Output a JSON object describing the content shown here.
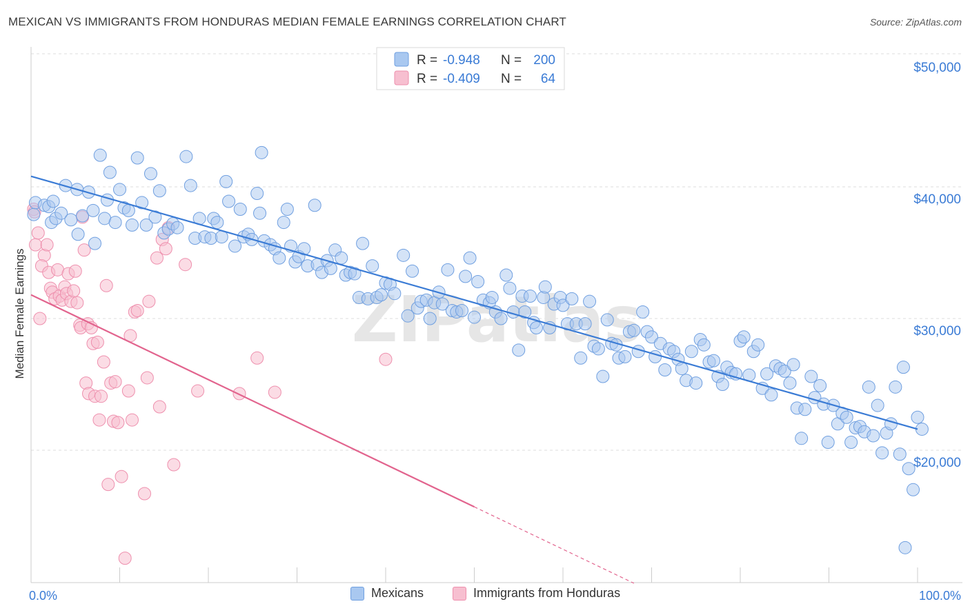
{
  "header": {
    "title": "MEXICAN VS IMMIGRANTS FROM HONDURAS MEDIAN FEMALE EARNINGS CORRELATION CHART",
    "source": "Source: ZipAtlas.com"
  },
  "watermark": "ZIPatlas",
  "colors": {
    "blue_fill": "#a9c8f0",
    "blue_stroke": "#6f9fe0",
    "blue_line": "#3a7bd5",
    "pink_fill": "#f7bfd0",
    "pink_stroke": "#ee8fad",
    "pink_line": "#e2648e",
    "axis_text_blue": "#3a7bd5",
    "grid": "#dddddd"
  },
  "legend_top": {
    "rows": [
      {
        "r_label": "R =",
        "r_value": "-0.948",
        "n_label": "N =",
        "n_value": "200"
      },
      {
        "r_label": "R =",
        "r_value": "-0.409",
        "n_label": "N =",
        "n_value": "64"
      }
    ]
  },
  "legend_bottom": {
    "items": [
      "Mexicans",
      "Immigrants from Honduras"
    ]
  },
  "chart_data": {
    "type": "scatter",
    "title": "MEXICAN VS IMMIGRANTS FROM HONDURAS MEDIAN FEMALE EARNINGS CORRELATION CHART",
    "xlabel": "",
    "ylabel": "Median Female Earnings",
    "xlim": [
      0,
      100
    ],
    "ylim": [
      10000,
      52000
    ],
    "x_tick_labels": [
      "0.0%",
      "100.0%"
    ],
    "y_ticks": [
      20000,
      30000,
      40000,
      50000
    ],
    "y_tick_labels": [
      "$20,000",
      "$30,000",
      "$40,000",
      "$50,000"
    ],
    "grid": true,
    "legend_position": "top-center",
    "series": [
      {
        "name": "Mexicans",
        "r": -0.948,
        "n": 200,
        "trend": {
          "x": [
            0,
            100
          ],
          "y": [
            40800,
            21600
          ]
        },
        "points": [
          [
            0.3,
            37.9
          ],
          [
            0.5,
            38.8
          ],
          [
            1.5,
            38.6
          ],
          [
            2.0,
            38.5
          ],
          [
            2.5,
            38.9
          ],
          [
            2.3,
            37.3
          ],
          [
            2.8,
            37.6
          ],
          [
            3.4,
            38.0
          ],
          [
            3.9,
            40.1
          ],
          [
            4.5,
            37.5
          ],
          [
            5.2,
            39.8
          ],
          [
            5.3,
            36.4
          ],
          [
            5.8,
            37.8
          ],
          [
            6.5,
            39.6
          ],
          [
            7.0,
            38.2
          ],
          [
            7.2,
            35.7
          ],
          [
            7.8,
            42.4
          ],
          [
            8.3,
            37.6
          ],
          [
            8.6,
            39.0
          ],
          [
            8.9,
            41.1
          ],
          [
            9.5,
            37.3
          ],
          [
            10.0,
            39.8
          ],
          [
            10.5,
            38.4
          ],
          [
            11.0,
            38.2
          ],
          [
            11.4,
            37.1
          ],
          [
            12.0,
            42.2
          ],
          [
            12.5,
            38.8
          ],
          [
            13.0,
            37.1
          ],
          [
            13.5,
            41.0
          ],
          [
            14.0,
            37.7
          ],
          [
            14.5,
            39.7
          ],
          [
            15.0,
            36.5
          ],
          [
            15.5,
            36.8
          ],
          [
            16.0,
            37.2
          ],
          [
            16.5,
            36.9
          ],
          [
            17.5,
            42.3
          ],
          [
            18.0,
            40.1
          ],
          [
            18.5,
            36.1
          ],
          [
            19.0,
            37.6
          ],
          [
            19.6,
            36.2
          ],
          [
            20.3,
            36.1
          ],
          [
            20.6,
            37.6
          ],
          [
            21.0,
            37.3
          ],
          [
            21.5,
            36.2
          ],
          [
            22.0,
            40.4
          ],
          [
            22.3,
            38.9
          ],
          [
            23.0,
            35.5
          ],
          [
            23.6,
            38.3
          ],
          [
            24.0,
            36.2
          ],
          [
            24.5,
            36.4
          ],
          [
            24.9,
            36.0
          ],
          [
            25.5,
            39.5
          ],
          [
            25.8,
            38.0
          ],
          [
            26.3,
            35.9
          ],
          [
            26.0,
            42.6
          ],
          [
            27.0,
            35.6
          ],
          [
            27.5,
            35.3
          ],
          [
            28.0,
            34.6
          ],
          [
            28.5,
            37.3
          ],
          [
            28.9,
            38.3
          ],
          [
            29.3,
            35.5
          ],
          [
            29.8,
            34.3
          ],
          [
            30.2,
            34.7
          ],
          [
            30.8,
            35.3
          ],
          [
            31.2,
            34.0
          ],
          [
            32.0,
            38.6
          ],
          [
            32.3,
            34.1
          ],
          [
            32.8,
            33.5
          ],
          [
            33.4,
            34.4
          ],
          [
            33.8,
            33.8
          ],
          [
            34.3,
            35.2
          ],
          [
            35.0,
            34.6
          ],
          [
            35.5,
            33.3
          ],
          [
            36.0,
            33.5
          ],
          [
            36.5,
            33.4
          ],
          [
            37.0,
            31.6
          ],
          [
            37.4,
            35.7
          ],
          [
            38.0,
            31.5
          ],
          [
            38.5,
            34.0
          ],
          [
            39.0,
            31.6
          ],
          [
            39.5,
            31.8
          ],
          [
            40.0,
            32.7
          ],
          [
            40.5,
            32.6
          ],
          [
            41.0,
            31.9
          ],
          [
            42.0,
            34.8
          ],
          [
            42.5,
            30.2
          ],
          [
            43.0,
            33.6
          ],
          [
            43.6,
            30.8
          ],
          [
            44.0,
            31.3
          ],
          [
            44.6,
            31.4
          ],
          [
            45.0,
            30.0
          ],
          [
            45.5,
            31.2
          ],
          [
            46.0,
            32.0
          ],
          [
            46.4,
            31.1
          ],
          [
            47.0,
            33.7
          ],
          [
            47.5,
            30.6
          ],
          [
            48.0,
            30.5
          ],
          [
            48.6,
            30.6
          ],
          [
            49.0,
            33.2
          ],
          [
            49.5,
            34.6
          ],
          [
            50.0,
            30.1
          ],
          [
            50.4,
            32.8
          ],
          [
            51.0,
            31.4
          ],
          [
            51.7,
            31.2
          ],
          [
            52.0,
            31.6
          ],
          [
            52.4,
            30.5
          ],
          [
            53.0,
            30.0
          ],
          [
            53.6,
            33.3
          ],
          [
            54.0,
            32.3
          ],
          [
            54.4,
            30.5
          ],
          [
            55.0,
            27.6
          ],
          [
            55.4,
            31.7
          ],
          [
            55.7,
            30.5
          ],
          [
            56.3,
            31.7
          ],
          [
            56.7,
            29.7
          ],
          [
            57.0,
            29.3
          ],
          [
            57.8,
            31.6
          ],
          [
            58.0,
            32.4
          ],
          [
            58.5,
            29.3
          ],
          [
            59.0,
            31.1
          ],
          [
            59.7,
            31.6
          ],
          [
            60.0,
            31.0
          ],
          [
            60.5,
            29.6
          ],
          [
            61.0,
            31.5
          ],
          [
            61.5,
            29.6
          ],
          [
            62.0,
            27.0
          ],
          [
            62.5,
            29.6
          ],
          [
            63.0,
            31.3
          ],
          [
            63.5,
            27.9
          ],
          [
            64.0,
            27.7
          ],
          [
            64.5,
            25.6
          ],
          [
            65.0,
            29.9
          ],
          [
            65.5,
            28.1
          ],
          [
            66.0,
            28.0
          ],
          [
            66.3,
            27.0
          ],
          [
            67.0,
            27.1
          ],
          [
            67.5,
            29.0
          ],
          [
            68.0,
            29.1
          ],
          [
            68.5,
            27.5
          ],
          [
            69.0,
            30.5
          ],
          [
            69.5,
            29.0
          ],
          [
            70.0,
            28.6
          ],
          [
            70.4,
            27.1
          ],
          [
            71.0,
            28.1
          ],
          [
            71.5,
            26.1
          ],
          [
            72.0,
            27.7
          ],
          [
            72.5,
            27.5
          ],
          [
            73.0,
            26.9
          ],
          [
            73.4,
            26.2
          ],
          [
            73.9,
            25.3
          ],
          [
            74.5,
            27.5
          ],
          [
            75.0,
            25.1
          ],
          [
            75.5,
            28.4
          ],
          [
            75.9,
            28.0
          ],
          [
            76.5,
            26.7
          ],
          [
            77.0,
            26.8
          ],
          [
            77.5,
            25.6
          ],
          [
            78.0,
            25.0
          ],
          [
            78.5,
            26.3
          ],
          [
            79.0,
            25.9
          ],
          [
            79.5,
            25.8
          ],
          [
            80.0,
            28.3
          ],
          [
            80.4,
            28.6
          ],
          [
            81.0,
            25.7
          ],
          [
            81.5,
            27.5
          ],
          [
            82.0,
            28.0
          ],
          [
            82.5,
            24.7
          ],
          [
            83.0,
            25.8
          ],
          [
            83.5,
            24.2
          ],
          [
            84.0,
            26.4
          ],
          [
            84.5,
            26.2
          ],
          [
            85.0,
            26.0
          ],
          [
            85.6,
            25.1
          ],
          [
            86.0,
            26.5
          ],
          [
            86.4,
            23.2
          ],
          [
            86.9,
            20.9
          ],
          [
            87.3,
            23.1
          ],
          [
            88.0,
            25.6
          ],
          [
            88.4,
            24.0
          ],
          [
            89.0,
            24.9
          ],
          [
            89.4,
            23.5
          ],
          [
            89.9,
            20.6
          ],
          [
            90.5,
            23.4
          ],
          [
            91.0,
            22.0
          ],
          [
            91.5,
            22.8
          ],
          [
            92.0,
            22.5
          ],
          [
            92.5,
            20.6
          ],
          [
            93.0,
            21.7
          ],
          [
            93.5,
            21.8
          ],
          [
            94.0,
            21.4
          ],
          [
            94.5,
            24.8
          ],
          [
            95.0,
            21.1
          ],
          [
            95.5,
            23.4
          ],
          [
            96.0,
            19.8
          ],
          [
            96.5,
            21.3
          ],
          [
            97.0,
            22.0
          ],
          [
            97.5,
            24.8
          ],
          [
            98.0,
            19.7
          ],
          [
            98.4,
            26.3
          ],
          [
            99.0,
            18.6
          ],
          [
            99.5,
            17.0
          ],
          [
            100.0,
            22.5
          ],
          [
            100.5,
            21.6
          ],
          [
            98.6,
            12.6
          ]
        ]
      },
      {
        "name": "Immigrants from Honduras",
        "r": -0.409,
        "n": 64,
        "trend": {
          "x": [
            0,
            50
          ],
          "y": [
            31800,
            15700
          ],
          "dashed_to": {
            "x": 68,
            "y": 9900
          }
        },
        "points": [
          [
            0.3,
            38.3
          ],
          [
            0.4,
            38.1
          ],
          [
            0.5,
            35.6
          ],
          [
            0.8,
            36.5
          ],
          [
            1.5,
            34.8
          ],
          [
            1.8,
            35.6
          ],
          [
            1.2,
            34.0
          ],
          [
            2.0,
            33.5
          ],
          [
            2.2,
            32.3
          ],
          [
            2.4,
            32.0
          ],
          [
            2.7,
            31.5
          ],
          [
            3.0,
            33.7
          ],
          [
            3.2,
            31.7
          ],
          [
            3.5,
            31.4
          ],
          [
            3.8,
            32.4
          ],
          [
            4.0,
            31.9
          ],
          [
            4.2,
            33.4
          ],
          [
            4.5,
            31.3
          ],
          [
            4.8,
            32.1
          ],
          [
            5.0,
            33.6
          ],
          [
            5.2,
            31.2
          ],
          [
            5.5,
            29.5
          ],
          [
            5.6,
            29.3
          ],
          [
            5.8,
            37.7
          ],
          [
            6.2,
            25.1
          ],
          [
            6.0,
            35.2
          ],
          [
            6.4,
            29.6
          ],
          [
            6.5,
            24.3
          ],
          [
            6.8,
            29.3
          ],
          [
            7.0,
            28.1
          ],
          [
            7.2,
            24.1
          ],
          [
            7.5,
            28.2
          ],
          [
            7.7,
            22.3
          ],
          [
            7.9,
            24.1
          ],
          [
            8.2,
            26.7
          ],
          [
            8.5,
            32.5
          ],
          [
            8.7,
            17.4
          ],
          [
            9.0,
            25.1
          ],
          [
            9.3,
            22.2
          ],
          [
            9.5,
            25.2
          ],
          [
            9.8,
            22.1
          ],
          [
            10.2,
            18.0
          ],
          [
            10.6,
            11.8
          ],
          [
            11.0,
            24.5
          ],
          [
            11.2,
            28.7
          ],
          [
            11.4,
            22.3
          ],
          [
            11.7,
            30.5
          ],
          [
            12.0,
            30.6
          ],
          [
            12.8,
            16.7
          ],
          [
            13.1,
            25.5
          ],
          [
            13.3,
            31.3
          ],
          [
            14.2,
            34.6
          ],
          [
            14.5,
            23.3
          ],
          [
            14.8,
            36.0
          ],
          [
            15.2,
            35.3
          ],
          [
            15.5,
            36.9
          ],
          [
            16.1,
            18.9
          ],
          [
            17.4,
            34.1
          ],
          [
            18.8,
            24.5
          ],
          [
            23.5,
            24.3
          ],
          [
            25.5,
            27.0
          ],
          [
            27.5,
            24.4
          ],
          [
            40.0,
            26.9
          ],
          [
            1.0,
            30.0
          ]
        ]
      }
    ]
  }
}
